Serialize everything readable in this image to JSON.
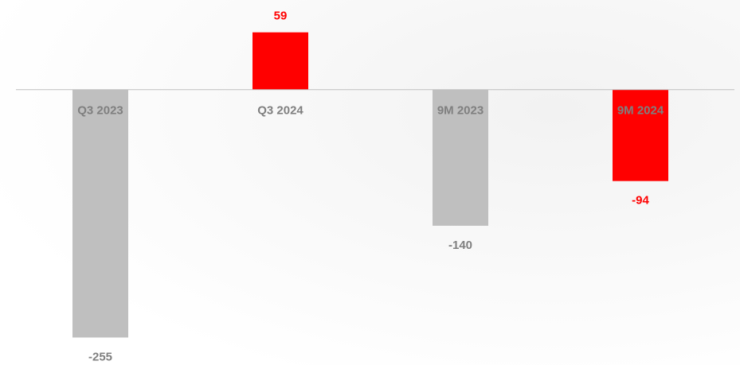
{
  "chart_data": {
    "type": "bar",
    "categories": [
      "Q3 2023",
      "Q3 2024",
      "9M 2023",
      "9M 2024"
    ],
    "values": [
      -255,
      59,
      -140,
      -94
    ],
    "colors": [
      "#bfbfbf",
      "#ff0000",
      "#bfbfbf",
      "#ff0000"
    ],
    "label_colors": [
      "#7f7f7f",
      "#ff0000",
      "#7f7f7f",
      "#ff0000"
    ],
    "ylim": [
      -280,
      80
    ]
  }
}
